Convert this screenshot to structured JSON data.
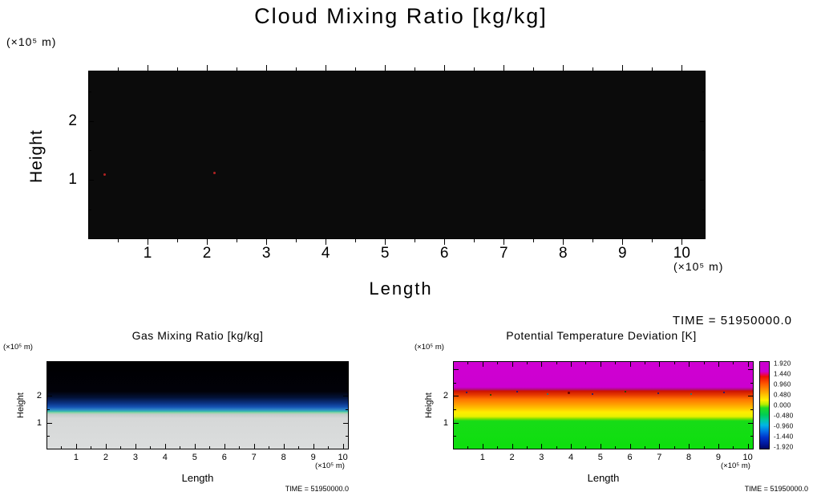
{
  "time_label_top": "TIME = 51950000.0",
  "chart_data": [
    {
      "id": "cloud",
      "type": "heatmap",
      "title": "Cloud Mixing Ratio [kg/kg]",
      "xlabel": "Length",
      "ylabel": "Height",
      "x_unit_label": "(×10⁵ m)",
      "y_unit_label": "(×10⁵ m)",
      "xticks": [
        1,
        2,
        3,
        4,
        5,
        6,
        7,
        8,
        9,
        10
      ],
      "yticks": [
        1,
        2
      ],
      "xlim": [
        0,
        10.4
      ],
      "ylim": [
        0,
        2.85
      ],
      "field_summary": "Cloud mixing ratio ≈ 0 everywhere (solid black field) except two tiny red specks near height 1.1×10⁵ m at x≈0.3×10⁵ m and x≈2.1×10⁵ m",
      "gradient_stops": [
        {
          "pos": 0,
          "color": "#0b0b0b"
        },
        {
          "pos": 100,
          "color": "#0b0b0b"
        }
      ],
      "specks": [
        {
          "x": 2.3,
          "y": 61,
          "size": 3,
          "color": "#b22222"
        },
        {
          "x": 20.2,
          "y": 60.2,
          "size": 3,
          "color": "#b22222"
        }
      ]
    },
    {
      "id": "gas",
      "type": "heatmap",
      "title": "Gas Mixing Ratio [kg/kg]",
      "xlabel": "Length",
      "ylabel": "Height",
      "x_unit_label": "(×10⁵ m)",
      "y_unit_label": "(×10⁵ m)",
      "time_label": "TIME = 51950000.0",
      "xticks": [
        1,
        2,
        3,
        4,
        5,
        6,
        7,
        8,
        9,
        10
      ],
      "yticks": [
        1,
        2
      ],
      "xlim": [
        0,
        10.2
      ],
      "ylim": [
        0,
        3.3
      ],
      "field_summary": "Black (near-zero) above ~2.2×10⁵ m, dark-blue to blue layer between ~1.4 and 2.1×10⁵ m, thin cyan-green band near 1.3×10⁵ m, uniform light gray (high well-mixed values) below",
      "gradient_stops": [
        {
          "pos": 0,
          "color": "#000000"
        },
        {
          "pos": 34,
          "color": "#010109"
        },
        {
          "pos": 41,
          "color": "#031238"
        },
        {
          "pos": 47,
          "color": "#0a2f7d"
        },
        {
          "pos": 52,
          "color": "#1553b4"
        },
        {
          "pos": 55,
          "color": "#2f86c9"
        },
        {
          "pos": 57,
          "color": "#35b9ad"
        },
        {
          "pos": 58.5,
          "color": "#8fd6a4"
        },
        {
          "pos": 60.5,
          "color": "#c7cbcb"
        },
        {
          "pos": 65,
          "color": "#d6d8d8"
        },
        {
          "pos": 100,
          "color": "#dbdddd"
        }
      ],
      "specks": []
    },
    {
      "id": "theta",
      "type": "heatmap",
      "title": "Potential Temperature Deviation [K]",
      "xlabel": "Length",
      "ylabel": "Height",
      "x_unit_label": "(×10⁵ m)",
      "y_unit_label": "(×10⁵ m)",
      "time_label": "TIME = 51950000.0",
      "xticks": [
        1,
        2,
        3,
        4,
        5,
        6,
        7,
        8,
        9,
        10
      ],
      "yticks": [
        1,
        2
      ],
      "xlim": [
        0,
        10.2
      ],
      "ylim": [
        0,
        3.3
      ],
      "field_summary": "Magenta (≈ +1.9 K) above ~2.2×10⁵ m, noisy red transition layer near 2×10⁵ m with scattered dark-blue/green specks, orange then yellow layers from ~1.5–2×10⁵ m, uniform green (≈ 0 to −0.5 K) below ~1.3×10⁵ m",
      "gradient_stops": [
        {
          "pos": 0,
          "color": "#cf00d2"
        },
        {
          "pos": 29,
          "color": "#cc00d0"
        },
        {
          "pos": 31.5,
          "color": "#b40b86"
        },
        {
          "pos": 33.5,
          "color": "#cc1400"
        },
        {
          "pos": 38,
          "color": "#e63900"
        },
        {
          "pos": 43,
          "color": "#ff7300"
        },
        {
          "pos": 49,
          "color": "#ffa000"
        },
        {
          "pos": 54,
          "color": "#ffc800"
        },
        {
          "pos": 58,
          "color": "#ffee00"
        },
        {
          "pos": 63,
          "color": "#e8f000"
        },
        {
          "pos": 65.5,
          "color": "#7fe000"
        },
        {
          "pos": 68,
          "color": "#17dc17"
        },
        {
          "pos": 100,
          "color": "#0ddf0d"
        }
      ],
      "specks": [
        {
          "x": 4,
          "y": 34,
          "size": 2,
          "color": "#001a80"
        },
        {
          "x": 12,
          "y": 37,
          "size": 2,
          "color": "#004d00"
        },
        {
          "x": 21,
          "y": 33.5,
          "size": 2,
          "color": "#001a80"
        },
        {
          "x": 31,
          "y": 36,
          "size": 2,
          "color": "#008a8f"
        },
        {
          "x": 38,
          "y": 34,
          "size": 3,
          "color": "#660000"
        },
        {
          "x": 46,
          "y": 36.5,
          "size": 2,
          "color": "#001a80"
        },
        {
          "x": 57,
          "y": 33.5,
          "size": 2,
          "color": "#004d00"
        },
        {
          "x": 68,
          "y": 35,
          "size": 2,
          "color": "#001a80"
        },
        {
          "x": 79,
          "y": 36,
          "size": 2,
          "color": "#008a8f"
        },
        {
          "x": 90,
          "y": 34,
          "size": 2,
          "color": "#001a80"
        }
      ],
      "colorbar": {
        "labels": [
          "1.920",
          "1.440",
          "0.960",
          "0.480",
          "0.000",
          "-0.480",
          "-0.960",
          "-1.440",
          "-1.920"
        ],
        "gradient_stops": [
          {
            "pos": 0,
            "color": "#cc00d0"
          },
          {
            "pos": 11,
            "color": "#cc00d0"
          },
          {
            "pos": 14,
            "color": "#e6006e"
          },
          {
            "pos": 17,
            "color": "#ee1100"
          },
          {
            "pos": 25,
            "color": "#ff5500"
          },
          {
            "pos": 31,
            "color": "#ff8800"
          },
          {
            "pos": 38,
            "color": "#ffc300"
          },
          {
            "pos": 44,
            "color": "#fff200"
          },
          {
            "pos": 49,
            "color": "#b4ee00"
          },
          {
            "pos": 53,
            "color": "#22dd22"
          },
          {
            "pos": 61,
            "color": "#00cc55"
          },
          {
            "pos": 67,
            "color": "#00c9a0"
          },
          {
            "pos": 73,
            "color": "#00b4e6"
          },
          {
            "pos": 80,
            "color": "#0072e6"
          },
          {
            "pos": 87,
            "color": "#0034cc"
          },
          {
            "pos": 94,
            "color": "#0019a0"
          },
          {
            "pos": 100,
            "color": "#000866"
          }
        ]
      }
    }
  ]
}
